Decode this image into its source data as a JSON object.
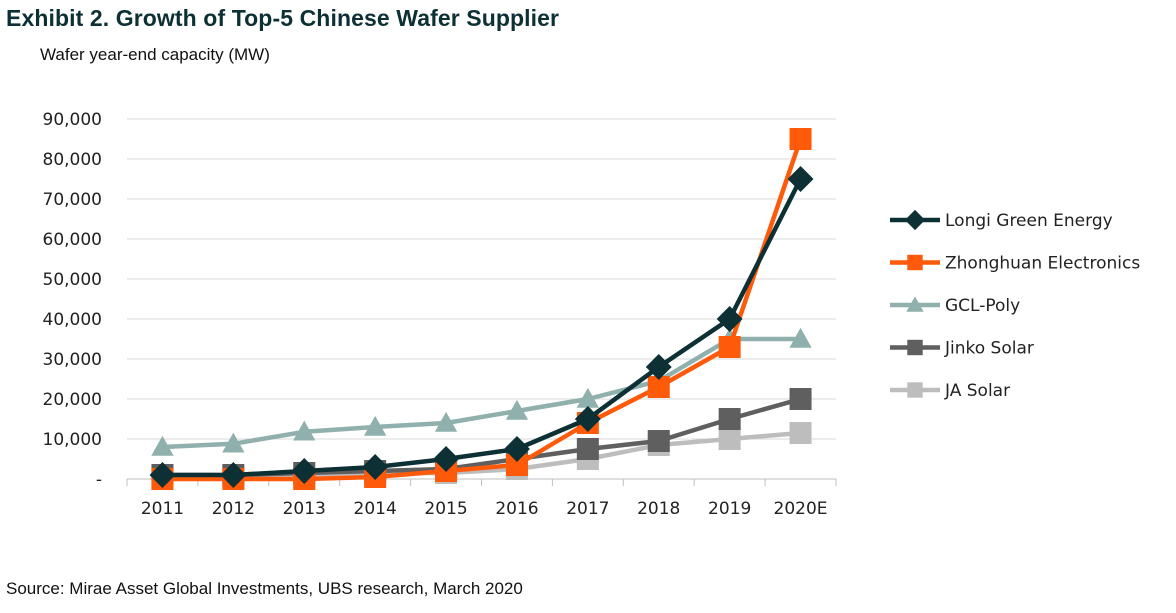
{
  "header": {
    "title": "Exhibit 2. Growth of Top-5 Chinese Wafer Supplier",
    "subtitle": "Wafer year-end capacity (MW)"
  },
  "footer": {
    "source": "Source: Mirae Asset Global Investments, UBS research, March 2020"
  },
  "chart_data": {
    "type": "line",
    "title": "Exhibit 2. Growth of Top-5 Chinese Wafer Supplier",
    "ylabel": "Wafer year-end capacity (MW)",
    "xlabel": "",
    "categories": [
      "2011",
      "2012",
      "2013",
      "2014",
      "2015",
      "2016",
      "2017",
      "2018",
      "2019",
      "2020E"
    ],
    "ylim": [
      0,
      90000
    ],
    "y_ticks": [
      0,
      10000,
      20000,
      30000,
      40000,
      50000,
      60000,
      70000,
      80000,
      90000
    ],
    "y_tick_labels": [
      "-",
      "10,000",
      "20,000",
      "30,000",
      "40,000",
      "50,000",
      "60,000",
      "70,000",
      "80,000",
      "90,000"
    ],
    "grid": "horizontal",
    "legend_position": "right",
    "series": [
      {
        "name": "Longi Green Energy",
        "color": "#0d3035",
        "marker": "diamond",
        "values": [
          1000,
          1000,
          2000,
          3000,
          5000,
          7500,
          15000,
          28000,
          40000,
          75000
        ]
      },
      {
        "name": "Zhonghuan Electronics",
        "color": "#ff5a0a",
        "marker": "square",
        "values": [
          0,
          0,
          0,
          500,
          2000,
          3500,
          14000,
          23000,
          33000,
          85000
        ]
      },
      {
        "name": "GCL-Poly",
        "color": "#8fb0ad",
        "marker": "triangle",
        "values": [
          8000,
          8800,
          11800,
          13000,
          14000,
          17000,
          20000,
          24500,
          35000,
          35000
        ]
      },
      {
        "name": "Jinko Solar",
        "color": "#5f5f5f",
        "marker": "square",
        "values": [
          1000,
          1000,
          1500,
          2000,
          2500,
          5000,
          7500,
          9500,
          15000,
          20000
        ]
      },
      {
        "name": "JA Solar",
        "color": "#bdbdbd",
        "marker": "square",
        "values": [
          500,
          500,
          500,
          1500,
          1500,
          2500,
          5000,
          8500,
          10000,
          11500
        ]
      }
    ]
  }
}
